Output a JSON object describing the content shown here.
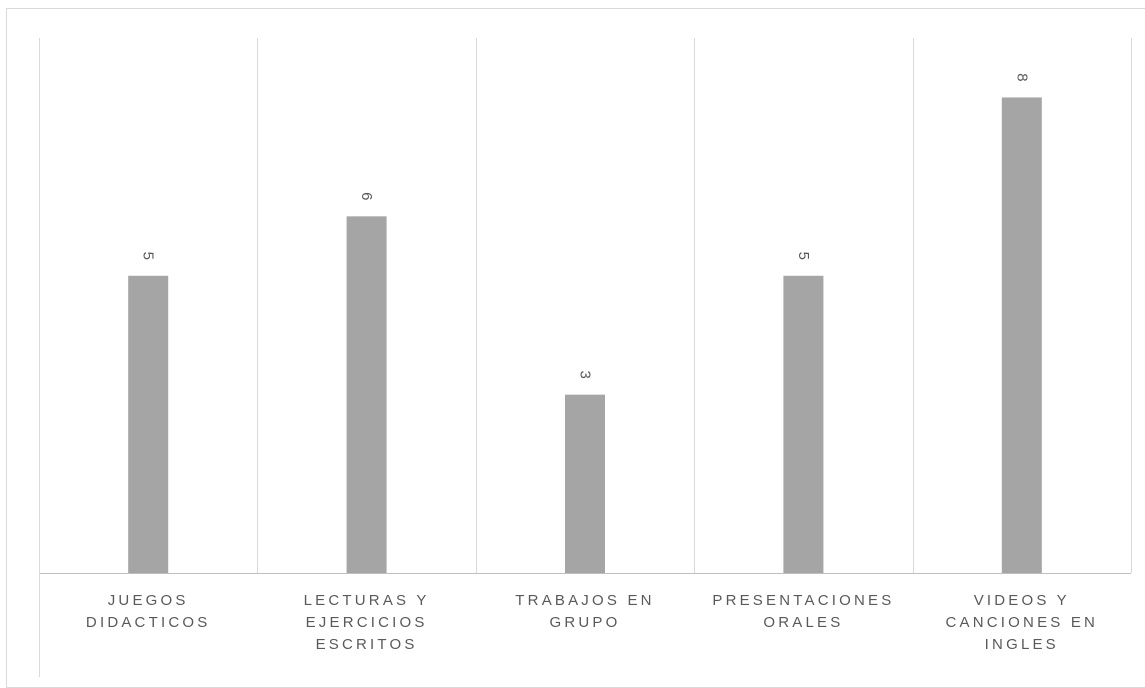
{
  "chart_data": {
    "type": "bar",
    "title": "",
    "xlabel": "",
    "ylabel": "",
    "categories": [
      "JUEGOS DIDACTICOS",
      "LECTURAS Y EJERCICIOS ESCRITOS",
      "TRABAJOS EN GRUPO",
      "PRESENTACIONES ORALES",
      "VIDEOS Y CANCIONES EN INGLES"
    ],
    "category_lines": [
      [
        "JUEGOS",
        "DIDACTICOS"
      ],
      [
        "LECTURAS Y",
        "EJERCICIOS",
        "ESCRITOS"
      ],
      [
        "TRABAJOS EN",
        "GRUPO"
      ],
      [
        "PRESENTACIONES",
        "ORALES"
      ],
      [
        "VIDEOS Y",
        "CANCIONES EN",
        "INGLES"
      ]
    ],
    "values": [
      5,
      6,
      3,
      5,
      8
    ],
    "data_labels": [
      "5",
      "6",
      "3",
      "5",
      "8"
    ],
    "ylim": [
      0,
      9
    ],
    "grid": "vertical category dividers",
    "legend": "none",
    "colors": {
      "bar": "#a5a5a5",
      "grid": "#d9d9d9",
      "axis": "#bfbfbf",
      "label": "#595959"
    }
  }
}
